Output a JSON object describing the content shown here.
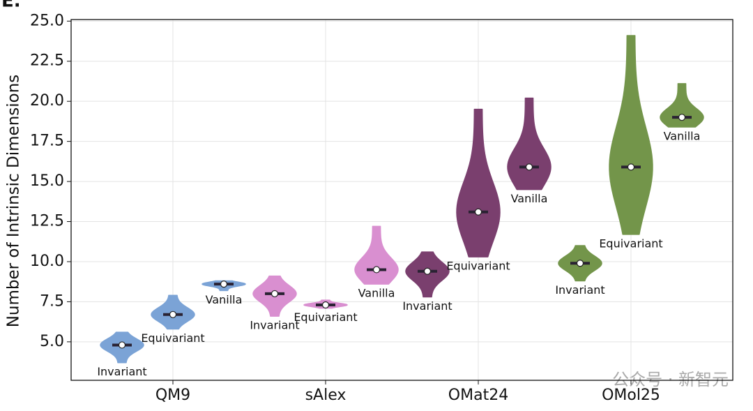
{
  "chart_data": {
    "type": "violin",
    "panel_label": "E.",
    "y_label": "Number of Intrinsic Dimensions",
    "categories": [
      "QM9",
      "sAlex",
      "OMat24",
      "OMol25"
    ],
    "colors": [
      "#7ba3d6",
      "#d98fd0",
      "#7a3f6e",
      "#73954a"
    ],
    "series": [
      {
        "name": "Invariant",
        "values": [
          4.8,
          8.0,
          9.4,
          9.9
        ],
        "min": [
          3.7,
          6.6,
          7.8,
          8.8
        ],
        "max": [
          5.6,
          9.1,
          10.6,
          11.0
        ]
      },
      {
        "name": "Equivariant",
        "values": [
          6.7,
          7.3,
          13.1,
          15.9
        ],
        "min": [
          5.8,
          7.1,
          10.3,
          11.7
        ],
        "max": [
          7.9,
          7.6,
          19.5,
          24.1
        ]
      },
      {
        "name": "Vanilla",
        "values": [
          8.6,
          9.5,
          15.9,
          19.0
        ],
        "min": [
          8.2,
          8.6,
          14.5,
          18.4
        ],
        "max": [
          8.8,
          12.2,
          20.2,
          21.1
        ]
      }
    ],
    "ylim": [
      2.6,
      25.1
    ],
    "yticks": [
      {
        "value": 5,
        "label": "5.0"
      },
      7.5,
      {
        "value": 10,
        "label": "10.0"
      },
      12.5,
      {
        "value": 15,
        "label": "15.0"
      },
      17.5,
      {
        "value": 20,
        "label": "20.0"
      },
      22.5,
      {
        "value": 25,
        "label": "25.0"
      }
    ],
    "grid": true,
    "watermark": "公众号 · 新智元"
  }
}
